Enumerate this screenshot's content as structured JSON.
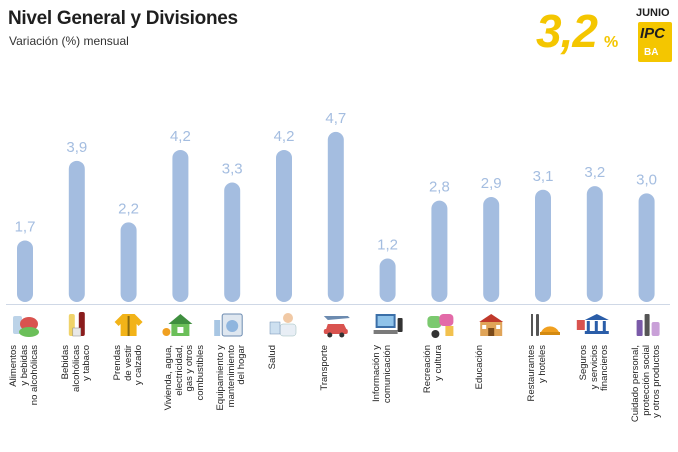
{
  "header": {
    "title": "Nivel General y Divisiones",
    "subtitle": "Variación (%) mensual"
  },
  "headline": {
    "value": "3,2",
    "unit": "%",
    "month": "JUNIO",
    "logo_top": "IPC",
    "logo_bottom": "BA",
    "color": "#f4c600"
  },
  "chart_data": {
    "type": "bar",
    "title": "Nivel General y Divisiones",
    "subtitle": "Variación (%) mensual",
    "ylim": [
      0,
      5
    ],
    "grid": false,
    "bar_color": "#a4bde0",
    "value_color": "#a4bde0",
    "categories": [
      "Alimentos\ny bebidas\nno alcohólicas",
      "Bebidas\nalcohólicas\ny tabaco",
      "Prendas\nde vestir\ny calzado",
      "Vivienda, agua,\nelectricidad,\ngas y otros\ncombustibles",
      "Equipamiento y\nmantenimiento\ndel hogar",
      "Salud",
      "Transporte",
      "Información y\ncomunicación",
      "Recreación\ny cultura",
      "Educación",
      "Restaurantes\ny hoteles",
      "Seguros\ny servicios\nfinancieros",
      "Cuidado personal,\nprotección social\ny otros productos"
    ],
    "values": [
      1.7,
      3.9,
      2.2,
      4.2,
      3.3,
      4.2,
      4.7,
      1.2,
      2.8,
      2.9,
      3.1,
      3.2,
      3.0
    ],
    "value_labels": [
      "1,7",
      "3,9",
      "2,2",
      "4,2",
      "3,3",
      "4,2",
      "4,7",
      "1,2",
      "2,8",
      "2,9",
      "3,1",
      "3,2",
      "3,0"
    ],
    "icons": [
      "food-icon",
      "bottles-icon",
      "clothing-icon",
      "house-icon",
      "washing-machine-icon",
      "doctor-icon",
      "car-plane-icon",
      "computer-icon",
      "masks-icon",
      "school-icon",
      "cutlery-icon",
      "bank-icon",
      "cosmetics-icon"
    ]
  }
}
